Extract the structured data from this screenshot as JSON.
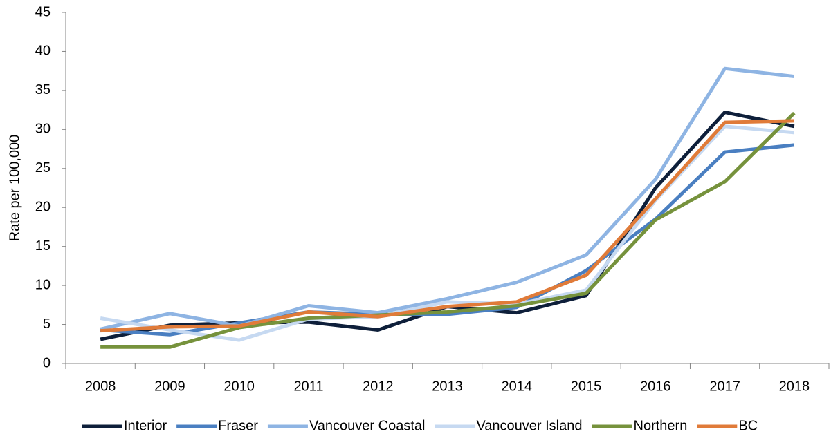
{
  "chart_data": {
    "type": "line",
    "y_label": "Rate per 100,000",
    "categories": [
      "2008",
      "2009",
      "2010",
      "2011",
      "2012",
      "2013",
      "2014",
      "2015",
      "2016",
      "2017",
      "2018"
    ],
    "series": [
      {
        "name": "Interior",
        "color": "#0e1f3a",
        "values": [
          3.1,
          4.9,
          5.2,
          5.3,
          4.3,
          7.3,
          6.5,
          8.7,
          22.5,
          32.2,
          30.4
        ]
      },
      {
        "name": "Fraser",
        "color": "#4a7fc1",
        "values": [
          4.3,
          3.7,
          5.2,
          6.6,
          6.3,
          6.3,
          7.2,
          11.9,
          18.5,
          27.1,
          28.0
        ]
      },
      {
        "name": "Vancouver Coastal",
        "color": "#8eb4e3",
        "values": [
          4.4,
          6.4,
          4.8,
          7.4,
          6.5,
          8.3,
          10.4,
          13.9,
          23.6,
          37.8,
          36.8
        ]
      },
      {
        "name": "Vancouver Island",
        "color": "#c6d9f1",
        "values": [
          5.8,
          4.3,
          3.0,
          5.7,
          6.0,
          7.9,
          7.6,
          9.4,
          20.9,
          30.4,
          29.6
        ]
      },
      {
        "name": "Northern",
        "color": "#76923c",
        "values": [
          2.1,
          2.1,
          4.6,
          5.8,
          6.2,
          6.6,
          7.4,
          9.0,
          18.4,
          23.3,
          32.1
        ]
      },
      {
        "name": "BC",
        "color": "#e07b39",
        "values": [
          4.2,
          4.7,
          4.8,
          6.6,
          6.0,
          7.3,
          7.9,
          11.3,
          21.1,
          30.9,
          31.1
        ]
      }
    ],
    "ylim": [
      0,
      45
    ],
    "yticks": [
      0,
      5,
      10,
      15,
      20,
      25,
      30,
      35,
      40,
      45
    ],
    "grid": false,
    "legend": "bottom"
  }
}
